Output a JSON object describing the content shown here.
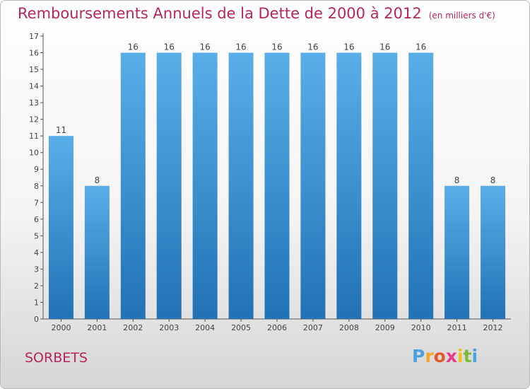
{
  "header": {
    "title": "Remboursements Annuels de la Dette de 2000 à 2012",
    "subtitle": "(en milliers d'€)"
  },
  "footer": {
    "town": "SORBETS",
    "logo_letters": [
      "P",
      "r",
      "o",
      "x",
      "i",
      "t",
      "i"
    ]
  },
  "colors": {
    "title": "#b5265c",
    "bar_top": "#5aaee8",
    "bar_bottom": "#2272b4",
    "axis": "#555555"
  },
  "chart_data": {
    "type": "bar",
    "title": "Remboursements Annuels de la Dette de 2000 à 2012",
    "subtitle": "(en milliers d'€)",
    "categories": [
      "2000",
      "2001",
      "2002",
      "2003",
      "2004",
      "2005",
      "2006",
      "2007",
      "2008",
      "2009",
      "2010",
      "2011",
      "2012"
    ],
    "values": [
      11,
      8,
      16,
      16,
      16,
      16,
      16,
      16,
      16,
      16,
      16,
      8,
      8
    ],
    "ylim": [
      0,
      17
    ],
    "yticks": [
      0,
      1,
      2,
      3,
      4,
      5,
      6,
      7,
      8,
      9,
      10,
      11,
      12,
      13,
      14,
      15,
      16,
      17
    ],
    "grid": false,
    "data_labels": true
  }
}
